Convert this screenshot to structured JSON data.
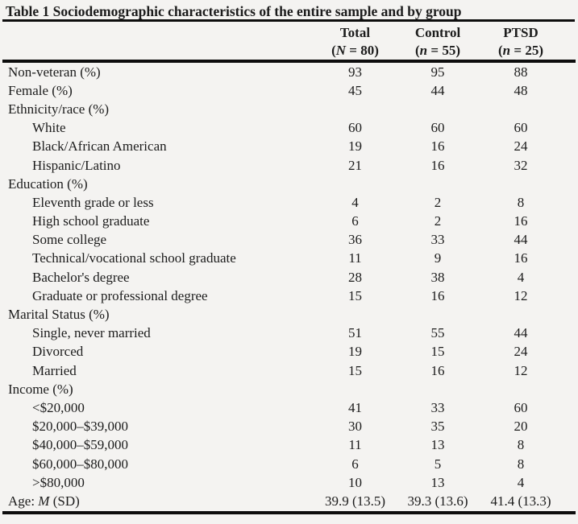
{
  "page": {
    "background_color": "#f4f3f1",
    "text_color": "#1c1c1c",
    "rule_color": "#0d0d0d"
  },
  "table": {
    "title": "Table 1 Sociodemographic characteristics of the entire sample and by group",
    "columns": [
      {
        "label": "Total",
        "sub_parts": [
          [
            "(",
            false
          ],
          [
            "N",
            true
          ],
          [
            " = 80)",
            false
          ]
        ]
      },
      {
        "label": "Control",
        "sub_parts": [
          [
            "(",
            false
          ],
          [
            "n",
            true
          ],
          [
            " = 55)",
            false
          ]
        ]
      },
      {
        "label": "PTSD",
        "sub_parts": [
          [
            "(",
            false
          ],
          [
            "n",
            true
          ],
          [
            " = 25)",
            false
          ]
        ]
      }
    ],
    "rows": [
      {
        "indent": 0,
        "label": "Non-veteran (%)",
        "values": [
          "93",
          "95",
          "88"
        ]
      },
      {
        "indent": 0,
        "label": "Female (%)",
        "values": [
          "45",
          "44",
          "48"
        ]
      },
      {
        "indent": 0,
        "label": "Ethnicity/race (%)",
        "values": [
          "",
          "",
          ""
        ]
      },
      {
        "indent": 1,
        "label": "White",
        "values": [
          "60",
          "60",
          "60"
        ]
      },
      {
        "indent": 1,
        "label": "Black/African American",
        "values": [
          "19",
          "16",
          "24"
        ]
      },
      {
        "indent": 1,
        "label": "Hispanic/Latino",
        "values": [
          "21",
          "16",
          "32"
        ]
      },
      {
        "indent": 0,
        "label": "Education (%)",
        "values": [
          "",
          "",
          ""
        ]
      },
      {
        "indent": 1,
        "label": "Eleventh grade or less",
        "values": [
          "4",
          "2",
          "8"
        ]
      },
      {
        "indent": 1,
        "label": "High school graduate",
        "values": [
          "6",
          "2",
          "16"
        ]
      },
      {
        "indent": 1,
        "label": "Some college",
        "values": [
          "36",
          "33",
          "44"
        ]
      },
      {
        "indent": 1,
        "label": "Technical/vocational school graduate",
        "values": [
          "11",
          "9",
          "16"
        ]
      },
      {
        "indent": 1,
        "label": "Bachelor's degree",
        "values": [
          "28",
          "38",
          "4"
        ]
      },
      {
        "indent": 1,
        "label": "Graduate or professional degree",
        "values": [
          "15",
          "16",
          "12"
        ]
      },
      {
        "indent": 0,
        "label": "Marital Status (%)",
        "values": [
          "",
          "",
          ""
        ]
      },
      {
        "indent": 1,
        "label": "Single, never married",
        "values": [
          "51",
          "55",
          "44"
        ]
      },
      {
        "indent": 1,
        "label": "Divorced",
        "values": [
          "19",
          "15",
          "24"
        ]
      },
      {
        "indent": 1,
        "label": "Married",
        "values": [
          "15",
          "16",
          "12"
        ]
      },
      {
        "indent": 0,
        "label": "Income (%)",
        "values": [
          "",
          "",
          ""
        ]
      },
      {
        "indent": 1,
        "label": "<$20,000",
        "values": [
          "41",
          "33",
          "60"
        ]
      },
      {
        "indent": 1,
        "label": "$20,000–$39,000",
        "values": [
          "30",
          "35",
          "20"
        ]
      },
      {
        "indent": 1,
        "label": "$40,000–$59,000",
        "values": [
          "11",
          "13",
          "8"
        ]
      },
      {
        "indent": 1,
        "label": "$60,000–$80,000",
        "values": [
          "6",
          "5",
          "8"
        ]
      },
      {
        "indent": 1,
        "label": ">$80,000",
        "values": [
          "10",
          "13",
          "4"
        ]
      },
      {
        "indent": 0,
        "label_parts": [
          [
            "Age: ",
            false
          ],
          [
            "M",
            true
          ],
          [
            " (SD)",
            false
          ]
        ],
        "values": [
          "39.9 (13.5)",
          "39.3 (13.6)",
          "41.4 (13.3)"
        ]
      }
    ]
  }
}
